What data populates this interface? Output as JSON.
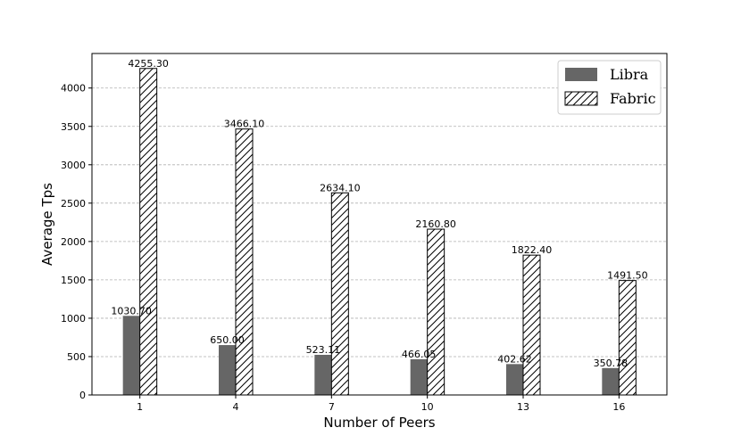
{
  "chart_data": {
    "type": "bar",
    "categories": [
      "1",
      "4",
      "7",
      "10",
      "13",
      "16"
    ],
    "series": [
      {
        "name": "Libra",
        "values": [
          1030.7,
          650.0,
          523.11,
          466.05,
          402.62,
          350.78
        ],
        "labels": [
          "1030.70",
          "650.00",
          "523.11",
          "466.05",
          "402.62",
          "350.78"
        ],
        "color": "#666666",
        "pattern": "solid"
      },
      {
        "name": "Fabric",
        "values": [
          4255.3,
          3466.1,
          2634.1,
          2160.8,
          1822.4,
          1491.5
        ],
        "labels": [
          "4255.30",
          "3466.10",
          "2634.10",
          "2160.80",
          "1822.40",
          "1491.50"
        ],
        "color": "#ffffff",
        "pattern": "hatch"
      }
    ],
    "xlabel": "Number of Peers",
    "ylabel": "Average Tps",
    "ylim": [
      0,
      4450
    ],
    "yticks": [
      0,
      500,
      1000,
      1500,
      2000,
      2500,
      3000,
      3500,
      4000
    ],
    "grid": "horizontal dashed",
    "legend_position": "top-right"
  }
}
